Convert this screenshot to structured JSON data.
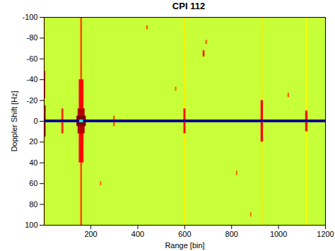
{
  "chart_data": {
    "type": "heatmap",
    "title": "CPI 112",
    "x_label": "Range [bin]",
    "y_label": "Doppler Shift [Hz]",
    "xlim": [
      1,
      1200
    ],
    "xticks": [
      200,
      400,
      600,
      800,
      1000,
      1200
    ],
    "ylim": [
      100,
      -100
    ],
    "yticks": [
      -100,
      -80,
      -60,
      -40,
      -20,
      0,
      20,
      40,
      60,
      80,
      100
    ],
    "zlim": [
      0,
      1
    ],
    "cells": [
      [
        1,
        1200,
        -100,
        100,
        0.57
      ],
      [
        156,
        164,
        -100,
        100,
        0.8
      ],
      [
        150,
        170,
        -40,
        40,
        0.87
      ],
      [
        145,
        175,
        -12,
        12,
        0.95
      ],
      [
        140,
        180,
        -5,
        5,
        1.0
      ],
      [
        1,
        6,
        -100,
        100,
        0.66
      ],
      [
        1,
        7,
        -48,
        -22,
        0.88
      ],
      [
        1,
        9,
        -15,
        15,
        0.9
      ],
      [
        76,
        84,
        -12,
        12,
        0.84
      ],
      [
        296,
        304,
        -5,
        5,
        0.78
      ],
      [
        598,
        603,
        -100,
        100,
        0.64
      ],
      [
        596,
        605,
        -12,
        12,
        0.86
      ],
      [
        927,
        933,
        -100,
        100,
        0.65
      ],
      [
        925,
        935,
        -20,
        20,
        0.88
      ],
      [
        1117,
        1123,
        -100,
        100,
        0.63
      ],
      [
        1115,
        1125,
        -10,
        10,
        0.86
      ],
      [
        678,
        686,
        -68,
        -62,
        0.85
      ],
      [
        690,
        696,
        -78,
        -74,
        0.8
      ],
      [
        438,
        444,
        -92,
        -88,
        0.8
      ],
      [
        1040,
        1046,
        -27,
        -23,
        0.8
      ],
      [
        560,
        566,
        -33,
        -29,
        0.78
      ],
      [
        820,
        826,
        48,
        52,
        0.78
      ],
      [
        240,
        246,
        58,
        62,
        0.78
      ],
      [
        880,
        886,
        88,
        92,
        0.77
      ],
      [
        1,
        1200,
        -1.3,
        1.3,
        0.02
      ],
      [
        152,
        168,
        -1.3,
        1.3,
        0.4
      ]
    ]
  }
}
